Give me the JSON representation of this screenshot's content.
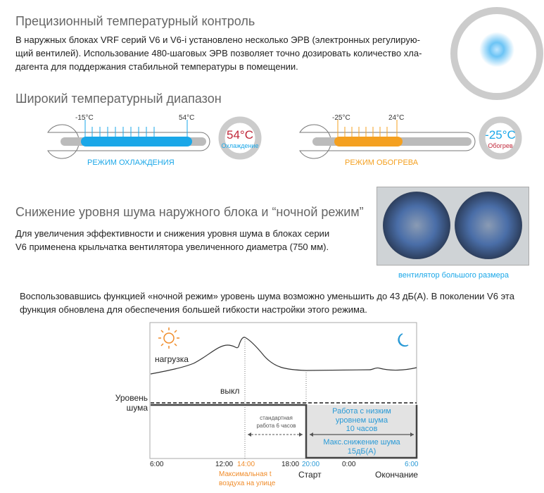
{
  "section1": {
    "title": "Прецизионный температурный контроль",
    "text_lines": [
      "В наружных блоках VRF серий V6 и V6-i установлено несколько ЭРВ (электронных регулирую-",
      "щий вентилей). Использование 480-шаговых ЭРВ позволяет точно дозировать количество хла-",
      "дагента для поддержания стабильной температуры в помещении."
    ]
  },
  "section2": {
    "title": "Широкий температурный диапазон",
    "cooling": {
      "min": "-15°C",
      "max": "54°C",
      "mode": "РЕЖИМ ОХЛАЖДЕНИЯ",
      "badge_value": "54°C",
      "badge_label": "Охлаждение",
      "color": "#1aa7e8"
    },
    "heating": {
      "min": "-25°C",
      "max": "24°C",
      "mode": "РЕЖИМ ОБОГРЕВА",
      "badge_value": "-25°C",
      "badge_label": "Обогрев",
      "color": "#f4a020"
    }
  },
  "section3": {
    "title": "Снижение уровня шума наружного блока и “ночной режим”",
    "text_lines": [
      "Для увеличения эффективности и снижения уровня шума в блоках серии",
      "V6 применена крыльчатка вентилятора увеличенного диаметра (750 мм)."
    ],
    "photo_caption": "вентилятор большого размера"
  },
  "night": {
    "text_lines": [
      "Воспользовавшись функцией «ночной режим» уровень шума возможно уменьшить до 43 дБ(А). В поколении V6 эта",
      "функция обновлена для обеспечения большей гибкости настройки этого режима."
    ]
  },
  "diagram": {
    "load_label": "нагрузка",
    "off_label": "выкл",
    "noise_label_1": "Уровень",
    "noise_label_2": "шума",
    "standard_1": "стандартная",
    "standard_2": "работа 6 часов",
    "low_1": "Работа с низким",
    "low_2": "уровнем шума",
    "low_3": "10 часов",
    "max_1": "Макс.снижение шума",
    "max_2": "15дБ(А)",
    "ticks": [
      "6:00",
      "12:00",
      "14:00",
      "18:00",
      "20:00",
      "0:00",
      "6:00"
    ],
    "max_t_1": "Максимальная t",
    "max_t_2": "воздуха на улице",
    "start": "Старт",
    "end": "Окончание",
    "icons": [
      "sun-icon",
      "moon-icon"
    ],
    "accent_blue": "#2a9ad6",
    "accent_orange": "#f08c2a"
  }
}
